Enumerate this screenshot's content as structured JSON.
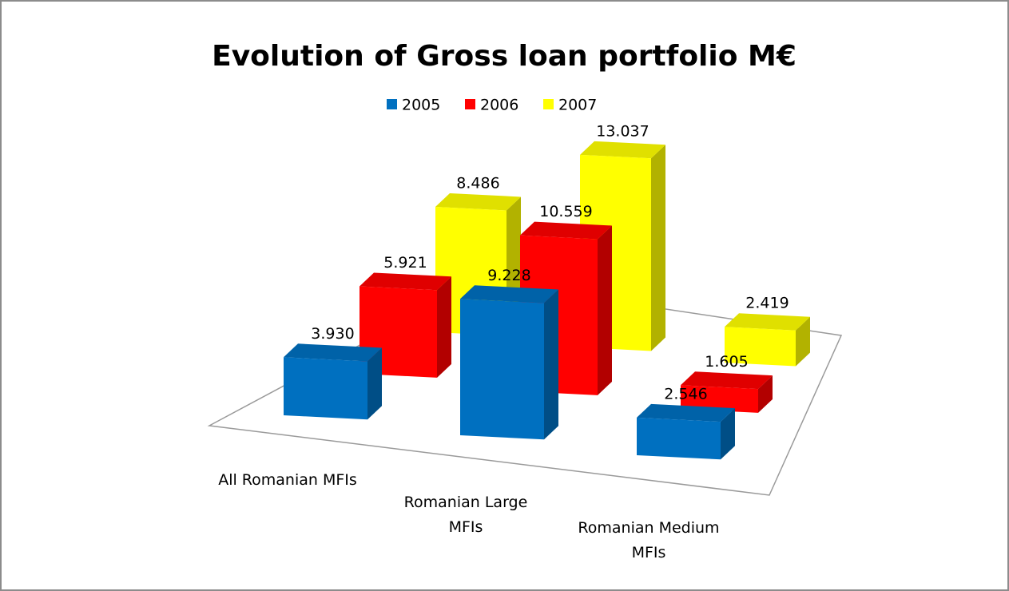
{
  "chart_data": {
    "type": "bar3d",
    "title": "Evolution of Gross loan portfolio M€",
    "categories": [
      "All Romanian MFIs",
      "Romanian Large MFIs",
      "Romanian Medium MFIs"
    ],
    "series": [
      {
        "name": "2005",
        "color": "#0070c0",
        "values": [
          3.93,
          9.228,
          2.546
        ],
        "value_labels": [
          "3.930",
          "9.228",
          "2.546"
        ]
      },
      {
        "name": "2006",
        "color": "#ff0000",
        "values": [
          5.921,
          10.559,
          1.605
        ],
        "value_labels": [
          "5.921",
          "10.559",
          "1.605"
        ]
      },
      {
        "name": "2007",
        "color": "#ffff00",
        "values": [
          8.486,
          13.037,
          2.419
        ],
        "value_labels": [
          "8.486",
          "13.037",
          "2.419"
        ]
      }
    ],
    "legend": "top"
  }
}
